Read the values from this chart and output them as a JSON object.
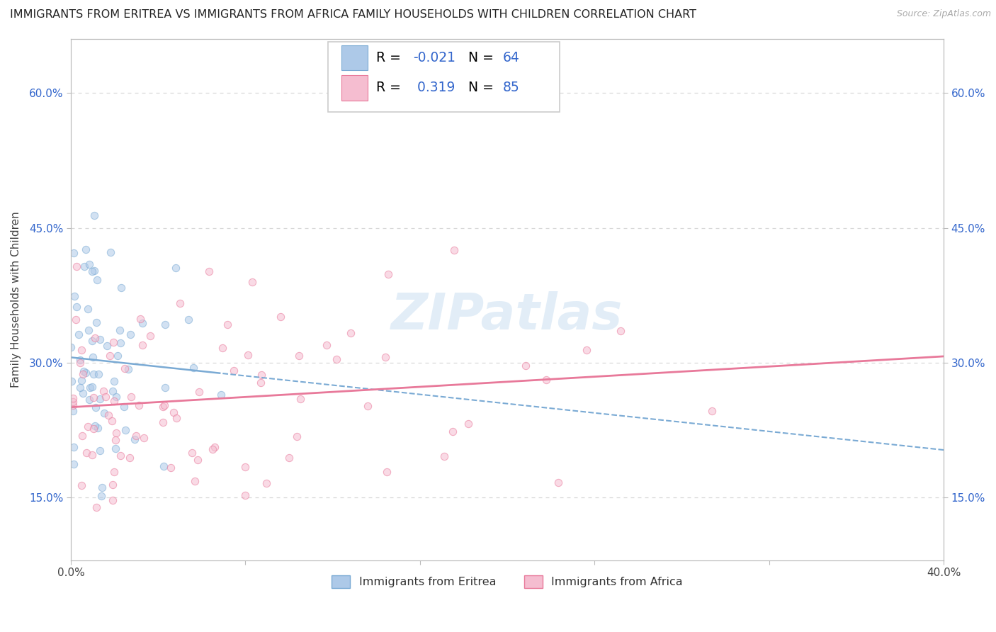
{
  "title": "IMMIGRANTS FROM ERITREA VS IMMIGRANTS FROM AFRICA FAMILY HOUSEHOLDS WITH CHILDREN CORRELATION CHART",
  "source": "Source: ZipAtlas.com",
  "ylabel": "Family Households with Children",
  "watermark": "ZIPatlas",
  "series": [
    {
      "name": "Immigrants from Eritrea",
      "color": "#adc9e8",
      "edge_color": "#7aaad4",
      "R": -0.021,
      "N": 64,
      "line_color": "#7aaad4",
      "line_style": "--"
    },
    {
      "name": "Immigrants from Africa",
      "color": "#f5bdd0",
      "edge_color": "#e8799a",
      "R": 0.319,
      "N": 85,
      "line_color": "#e8799a",
      "line_style": "-"
    }
  ],
  "xlim": [
    0.0,
    0.4
  ],
  "ylim": [
    0.08,
    0.66
  ],
  "yticks": [
    0.15,
    0.3,
    0.45,
    0.6
  ],
  "ytick_labels": [
    "15.0%",
    "30.0%",
    "45.0%",
    "60.0%"
  ],
  "xticks": [
    0.0,
    0.08,
    0.16,
    0.24,
    0.32,
    0.4
  ],
  "xtick_labels": [
    "0.0%",
    "",
    "",
    "",
    "",
    "40.0%"
  ],
  "grid_color": "#d8d8d8",
  "background_color": "#ffffff",
  "scatter_alpha": 0.55,
  "scatter_size": 55,
  "title_fontsize": 11.5,
  "axis_label_fontsize": 11,
  "tick_fontsize": 11,
  "stat_color": "#3366cc"
}
